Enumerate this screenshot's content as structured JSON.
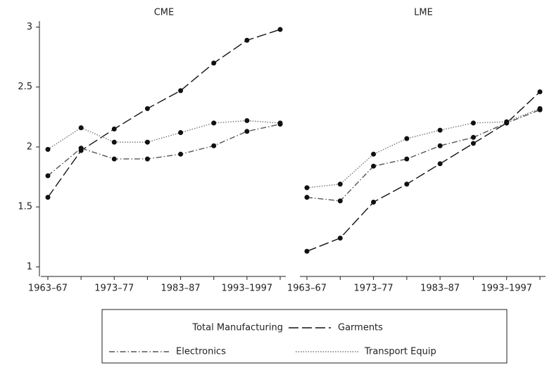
{
  "chart_data": [
    {
      "type": "line",
      "title": "CME",
      "categories": [
        "1963–67",
        null,
        "1973–77",
        null,
        "1983–87",
        null,
        "1993–1997",
        null
      ],
      "series": [
        {
          "name": "Garments",
          "color": "#111111",
          "dash": "14 5",
          "values": [
            1.58,
            1.97,
            2.15,
            2.32,
            2.47,
            2.7,
            2.89,
            2.98
          ]
        },
        {
          "name": "Electronics",
          "color": "#555555",
          "dash": "8 3 1.5 3",
          "values": [
            1.76,
            1.99,
            1.9,
            1.9,
            1.94,
            2.01,
            2.13,
            2.19
          ]
        },
        {
          "name": "Transport Equip",
          "color": "#777777",
          "dash": "1.5 2",
          "values": [
            1.98,
            2.16,
            2.04,
            2.04,
            2.12,
            2.2,
            2.22,
            2.2
          ]
        }
      ],
      "ylim": [
        0.92,
        3.05
      ],
      "yticks": [
        1,
        1.5,
        2,
        2.5,
        3
      ]
    },
    {
      "type": "line",
      "title": "LME",
      "categories": [
        "1963–67",
        null,
        "1973–77",
        null,
        "1983–87",
        null,
        "1993–1997",
        null
      ],
      "series": [
        {
          "name": "Garments",
          "color": "#111111",
          "dash": "14 5",
          "values": [
            1.13,
            1.24,
            1.54,
            1.69,
            1.86,
            2.03,
            2.2,
            2.46
          ]
        },
        {
          "name": "Electronics",
          "color": "#555555",
          "dash": "8 3 1.5 3",
          "values": [
            1.58,
            1.55,
            1.84,
            1.9,
            2.01,
            2.08,
            2.2,
            2.31
          ]
        },
        {
          "name": "Transport Equip",
          "color": "#777777",
          "dash": "1.5 2",
          "values": [
            1.66,
            1.69,
            1.94,
            2.07,
            2.14,
            2.2,
            2.21,
            2.32
          ]
        }
      ],
      "ylim": [
        0.92,
        3.05
      ]
    }
  ],
  "legend_label": "Total Manufacturing"
}
